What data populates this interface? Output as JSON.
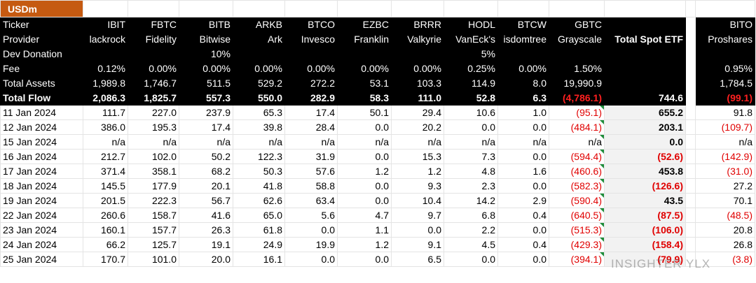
{
  "header": {
    "unit": "USDm"
  },
  "table": {
    "rows": [
      [
        "Ticker",
        "IBIT",
        "FBTC",
        "BITB",
        "ARKB",
        "BTCO",
        "EZBC",
        "BRRR",
        "HODL",
        "BTCW",
        "GBTC",
        null,
        "BITO"
      ],
      [
        "Provider",
        "lackrock",
        "Fidelity",
        "Bitwise",
        "Ark",
        "Invesco",
        "Franklin",
        "Valkyrie",
        "VanEck's",
        "isdomtree",
        "Grayscale",
        "Total Spot ETF",
        "Proshares"
      ],
      [
        "Dev Donation",
        null,
        null,
        "10%",
        null,
        null,
        null,
        null,
        "5%",
        null,
        null,
        null,
        null
      ],
      [
        "Fee",
        "0.12%",
        "0.00%",
        "0.00%",
        "0.00%",
        "0.00%",
        "0.00%",
        "0.00%",
        "0.25%",
        "0.00%",
        "1.50%",
        null,
        "0.95%"
      ],
      [
        "Total Assets",
        "1,989.8",
        "1,746.7",
        "511.5",
        "529.2",
        "272.2",
        "53.1",
        "103.3",
        "114.9",
        "8.0",
        "19,990.9",
        null,
        "1,784.5"
      ],
      [
        "Total Flow",
        "2,086.3",
        "1,825.7",
        "557.3",
        "550.0",
        "282.9",
        "58.3",
        "111.0",
        "52.8",
        "6.3",
        "(4,786.1)",
        "744.6",
        "(99.1)"
      ],
      [
        "11 Jan 2024",
        "111.7",
        "227.0",
        "237.9",
        "65.3",
        "17.4",
        "50.1",
        "29.4",
        "10.6",
        "1.0",
        "(95.1)",
        "655.2",
        "91.8"
      ],
      [
        "12 Jan 2024",
        "386.0",
        "195.3",
        "17.4",
        "39.8",
        "28.4",
        "0.0",
        "20.2",
        "0.0",
        "0.0",
        "(484.1)",
        "203.1",
        "(109.7)"
      ],
      [
        "15 Jan 2024",
        "n/a",
        "n/a",
        "n/a",
        "n/a",
        "n/a",
        "n/a",
        "n/a",
        "n/a",
        "n/a",
        "n/a",
        "0.0",
        "n/a"
      ],
      [
        "16 Jan 2024",
        "212.7",
        "102.0",
        "50.2",
        "122.3",
        "31.9",
        "0.0",
        "15.3",
        "7.3",
        "0.0",
        "(594.4)",
        "(52.6)",
        "(142.9)"
      ],
      [
        "17 Jan 2024",
        "371.4",
        "358.1",
        "68.2",
        "50.3",
        "57.6",
        "1.2",
        "1.2",
        "4.8",
        "1.6",
        "(460.6)",
        "453.8",
        "(31.0)"
      ],
      [
        "18 Jan 2024",
        "145.5",
        "177.9",
        "20.1",
        "41.8",
        "58.8",
        "0.0",
        "9.3",
        "2.3",
        "0.0",
        "(582.3)",
        "(126.6)",
        "27.2"
      ],
      [
        "19 Jan 2024",
        "201.5",
        "222.3",
        "56.7",
        "62.6",
        "63.4",
        "0.0",
        "10.4",
        "14.2",
        "2.9",
        "(590.4)",
        "43.5",
        "70.1"
      ],
      [
        "22 Jan 2024",
        "260.6",
        "158.7",
        "41.6",
        "65.0",
        "5.6",
        "4.7",
        "9.7",
        "6.8",
        "0.4",
        "(640.5)",
        "(87.5)",
        "(48.5)"
      ],
      [
        "23 Jan 2024",
        "160.1",
        "157.7",
        "26.3",
        "61.8",
        "0.0",
        "1.1",
        "0.0",
        "2.2",
        "0.0",
        "(515.3)",
        "(106.0)",
        "20.8"
      ],
      [
        "24 Jan 2024",
        "66.2",
        "125.7",
        "19.1",
        "24.9",
        "19.9",
        "1.2",
        "9.1",
        "4.5",
        "0.4",
        "(429.3)",
        "(158.4)",
        "26.8"
      ],
      [
        "25 Jan 2024",
        "170.7",
        "101.0",
        "20.0",
        "16.1",
        "0.0",
        "0.0",
        "6.5",
        "0.0",
        "0.0",
        "(394.1)",
        "(79.9)",
        "(3.8)"
      ]
    ]
  },
  "watermark": "INSIGHTER YLX"
}
